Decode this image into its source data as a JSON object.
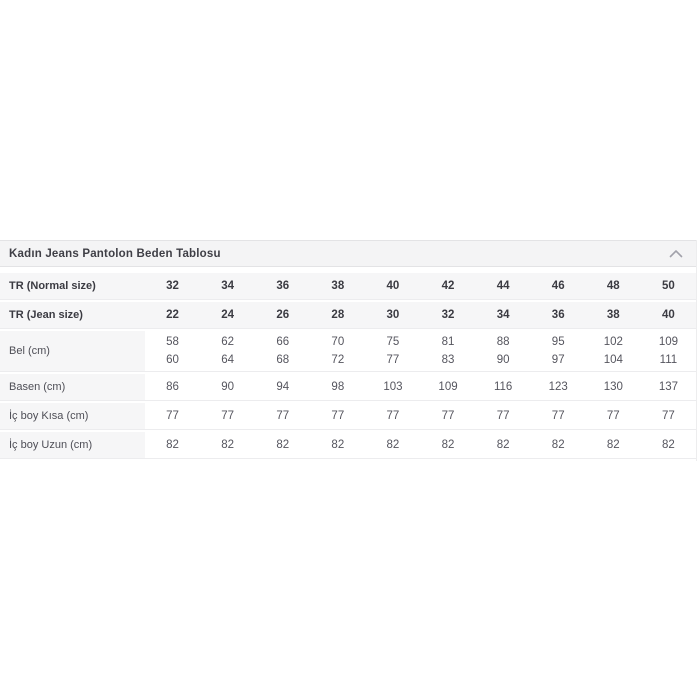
{
  "accordion": {
    "title": "Kadın Jeans Pantolon Beden Tablosu",
    "collapse_icon": "chevron-up"
  },
  "size_table": {
    "rows": [
      {
        "label": "TR (Normal size)",
        "header": true,
        "values": [
          "32",
          "34",
          "36",
          "38",
          "40",
          "42",
          "44",
          "46",
          "48",
          "50"
        ]
      },
      {
        "label": "TR (Jean size)",
        "header": true,
        "values": [
          "22",
          "24",
          "26",
          "28",
          "30",
          "32",
          "34",
          "36",
          "38",
          "40"
        ]
      },
      {
        "label": "Bel (cm)",
        "header": false,
        "values": [
          [
            "58",
            "60"
          ],
          [
            "62",
            "64"
          ],
          [
            "66",
            "68"
          ],
          [
            "70",
            "72"
          ],
          [
            "75",
            "77"
          ],
          [
            "81",
            "83"
          ],
          [
            "88",
            "90"
          ],
          [
            "95",
            "97"
          ],
          [
            "102",
            "104"
          ],
          [
            "109",
            "111"
          ]
        ]
      },
      {
        "label": "Basen (cm)",
        "header": false,
        "values": [
          "86",
          "90",
          "94",
          "98",
          "103",
          "109",
          "116",
          "123",
          "130",
          "137"
        ]
      },
      {
        "label": "İç boy Kısa (cm)",
        "header": false,
        "values": [
          "77",
          "77",
          "77",
          "77",
          "77",
          "77",
          "77",
          "77",
          "77",
          "77"
        ]
      },
      {
        "label": "İç boy Uzun (cm)",
        "header": false,
        "values": [
          "82",
          "82",
          "82",
          "82",
          "82",
          "82",
          "82",
          "82",
          "82",
          "82"
        ]
      }
    ]
  },
  "colors": {
    "panel_header_bg": "#f4f4f5",
    "row_label_bg": "#f6f6f7",
    "row_border": "#ececee",
    "text_primary": "#3b3b42",
    "text_secondary": "#55555e",
    "chevron": "#a1a1aa"
  }
}
